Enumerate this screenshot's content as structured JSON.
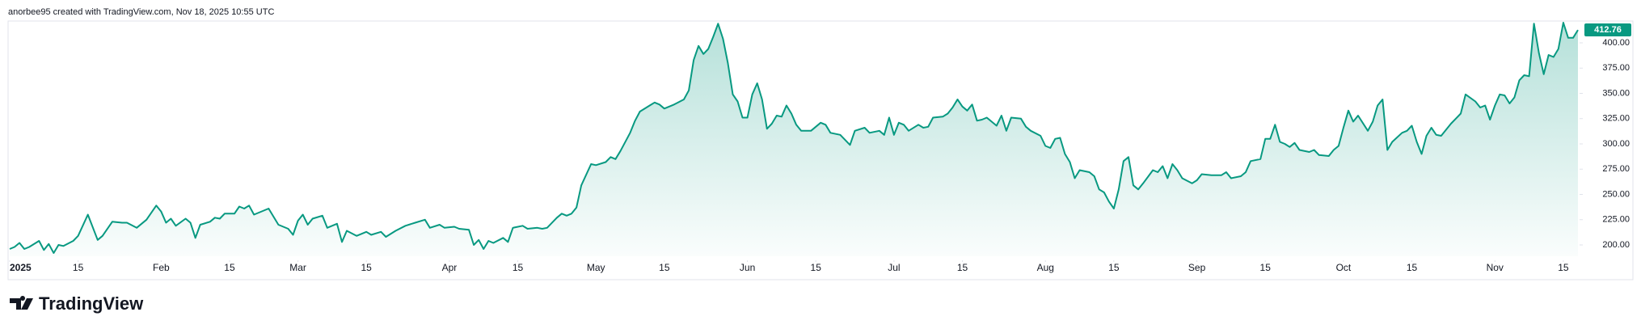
{
  "header": "anorbee95 created with TradingView.com, Nov 18, 2025 10:55 UTC",
  "brand": "TradingView",
  "chart_data": {
    "type": "area",
    "color": "#089981",
    "x": [
      0,
      1,
      2,
      3,
      4,
      6,
      7,
      8,
      9,
      10,
      11,
      13,
      14,
      16,
      18,
      19,
      21,
      23,
      24,
      26,
      28,
      30,
      31,
      32,
      33,
      34,
      36,
      37,
      38,
      39,
      41,
      42,
      43,
      44,
      46,
      47,
      48,
      49,
      50,
      52,
      53,
      55,
      57,
      58,
      59,
      60,
      61,
      62,
      64,
      65,
      67,
      68,
      69,
      71,
      73,
      74,
      76,
      77,
      79,
      81,
      83,
      85,
      86,
      88,
      89,
      91,
      92,
      94,
      95,
      96,
      97,
      98,
      99,
      101,
      102,
      103,
      105,
      106,
      108,
      109,
      110,
      112,
      113,
      114,
      115,
      116,
      117,
      119,
      120,
      122,
      123,
      124,
      125,
      127,
      128,
      129,
      131,
      132,
      133,
      134,
      135,
      136,
      138,
      139,
      140,
      141,
      142,
      143,
      144,
      145,
      146,
      147,
      148,
      149,
      150,
      151,
      152,
      153,
      154,
      155,
      156,
      157,
      158,
      159,
      160,
      161,
      162,
      164,
      166,
      167,
      168,
      170,
      172,
      173,
      175,
      176,
      178,
      179,
      180,
      181,
      182,
      183,
      184,
      186,
      187,
      188,
      189,
      191,
      192,
      193,
      194,
      195,
      196,
      197,
      198,
      199,
      200,
      202,
      203,
      204,
      205,
      207,
      208,
      209,
      211,
      212,
      213,
      214,
      215,
      216,
      217,
      218,
      219,
      221,
      222,
      223,
      224,
      225,
      226,
      227,
      228,
      229,
      230,
      231,
      232,
      234,
      235,
      236,
      237,
      238,
      239,
      240,
      242,
      243,
      244,
      246,
      248,
      249,
      250,
      252,
      253,
      254,
      256,
      257,
      258,
      259,
      260,
      261,
      262,
      263,
      264,
      266,
      267,
      268,
      270,
      271,
      272,
      273,
      274,
      275,
      276,
      278,
      279,
      280,
      281,
      282,
      283,
      285,
      286,
      287,
      288,
      289,
      290,
      291,
      292,
      293,
      295,
      296,
      297,
      298,
      300,
      301,
      302,
      303,
      304,
      305,
      306,
      307,
      308,
      309,
      310,
      311,
      312,
      313,
      314,
      315,
      316,
      317,
      318,
      319,
      320,
      321
    ],
    "values": [
      196,
      198,
      202,
      196,
      198,
      204,
      195,
      201,
      192,
      200,
      199,
      204,
      209,
      230,
      205,
      209,
      223,
      222,
      222,
      217,
      225,
      239,
      233,
      222,
      226,
      219,
      226,
      222,
      207,
      220,
      223,
      227,
      226,
      231,
      231,
      238,
      236,
      239,
      230,
      234,
      236,
      220,
      216,
      210,
      224,
      230,
      220,
      226,
      229,
      217,
      221,
      203,
      214,
      209,
      213,
      210,
      213,
      208,
      214,
      219,
      222,
      225,
      217,
      220,
      217,
      218,
      216,
      215,
      200,
      205,
      196,
      204,
      202,
      207,
      203,
      217,
      219,
      216,
      217,
      216,
      217,
      227,
      231,
      229,
      231,
      237,
      259,
      280,
      279,
      282,
      287,
      285,
      293,
      311,
      323,
      332,
      338,
      341,
      339,
      335,
      337,
      339,
      344,
      353,
      383,
      397,
      389,
      394,
      406,
      419,
      404,
      380,
      349,
      342,
      326,
      326,
      349,
      360,
      344,
      315,
      320,
      328,
      327,
      338,
      330,
      319,
      313,
      313,
      321,
      319,
      311,
      309,
      299,
      313,
      316,
      311,
      313,
      309,
      326,
      309,
      321,
      319,
      313,
      319,
      316,
      317,
      326,
      327,
      330,
      336,
      344,
      337,
      333,
      339,
      323,
      324,
      326,
      318,
      328,
      313,
      326,
      325,
      317,
      313,
      308,
      298,
      296,
      305,
      306,
      290,
      282,
      266,
      274,
      272,
      268,
      255,
      252,
      243,
      236,
      255,
      283,
      287,
      259,
      255,
      261,
      274,
      272,
      278,
      266,
      280,
      274,
      266,
      261,
      264,
      270,
      269,
      269,
      272,
      266,
      268,
      272,
      283,
      285,
      305,
      305,
      319,
      302,
      300,
      297,
      301,
      294,
      292,
      294,
      289,
      288,
      294,
      298,
      316,
      333,
      322,
      328,
      313,
      322,
      338,
      344,
      294,
      302,
      311,
      313,
      318,
      302,
      290,
      308,
      316,
      309,
      308,
      320,
      325,
      330,
      349,
      342,
      336,
      338,
      324,
      338,
      349,
      348,
      340,
      346,
      363,
      368,
      367,
      419,
      390,
      369,
      388,
      386,
      394,
      420,
      405,
      405,
      412.76
    ],
    "xlim": [
      0,
      321
    ],
    "xticks": [
      {
        "value": 0,
        "label": "2025"
      },
      {
        "value": 14,
        "label": "15"
      },
      {
        "value": 31,
        "label": "Feb"
      },
      {
        "value": 45,
        "label": "15"
      },
      {
        "value": 59,
        "label": "Mar"
      },
      {
        "value": 73,
        "label": "15"
      },
      {
        "value": 90,
        "label": "Apr"
      },
      {
        "value": 104,
        "label": "15"
      },
      {
        "value": 120,
        "label": "May"
      },
      {
        "value": 134,
        "label": "15"
      },
      {
        "value": 151,
        "label": "Jun"
      },
      {
        "value": 165,
        "label": "15"
      },
      {
        "value": 181,
        "label": "Jul"
      },
      {
        "value": 195,
        "label": "15"
      },
      {
        "value": 212,
        "label": "Aug"
      },
      {
        "value": 226,
        "label": "15"
      },
      {
        "value": 243,
        "label": "Sep"
      },
      {
        "value": 257,
        "label": "15"
      },
      {
        "value": 273,
        "label": "Oct"
      },
      {
        "value": 287,
        "label": "15"
      },
      {
        "value": 304,
        "label": "Nov"
      },
      {
        "value": 318,
        "label": "15"
      }
    ],
    "ylim": [
      188.8,
      421.6
    ],
    "yticks": [
      {
        "value": 200,
        "label": "200.00"
      },
      {
        "value": 225,
        "label": "225.00"
      },
      {
        "value": 250,
        "label": "250.00"
      },
      {
        "value": 275,
        "label": "275.00"
      },
      {
        "value": 300,
        "label": "300.00"
      },
      {
        "value": 325,
        "label": "325.00"
      },
      {
        "value": 350,
        "label": "350.00"
      },
      {
        "value": 375,
        "label": "375.00"
      },
      {
        "value": 400,
        "label": "400.00"
      }
    ]
  }
}
